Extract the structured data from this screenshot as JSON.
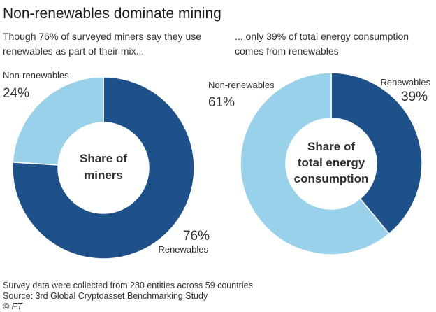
{
  "title": "Non-renewables dominate mining",
  "footer": {
    "note": "Survey data were collected from 280 entities across 59 countries",
    "source": "Source: 3rd Global Cryptoasset Benchmarking Study",
    "credit": "© FT"
  },
  "colors": {
    "renewables": "#1e5089",
    "non_renewables": "#99d1ea"
  },
  "chart_data": [
    {
      "type": "pie",
      "subtitle": "Though 76% of surveyed miners say they use renewables as part of their mix...",
      "center_label": [
        "Share of",
        "miners"
      ],
      "slices": [
        {
          "label": "Renewables",
          "value": 76,
          "value_label": "76%"
        },
        {
          "label": "Non-renewables",
          "value": 24,
          "value_label": "24%"
        }
      ]
    },
    {
      "type": "pie",
      "subtitle": "... only 39% of total energy consumption comes from renewables",
      "center_label": [
        "Share of",
        "total energy",
        "consumption"
      ],
      "slices": [
        {
          "label": "Renewables",
          "value": 39,
          "value_label": "39%"
        },
        {
          "label": "Non-renewables",
          "value": 61,
          "value_label": "61%"
        }
      ]
    }
  ]
}
